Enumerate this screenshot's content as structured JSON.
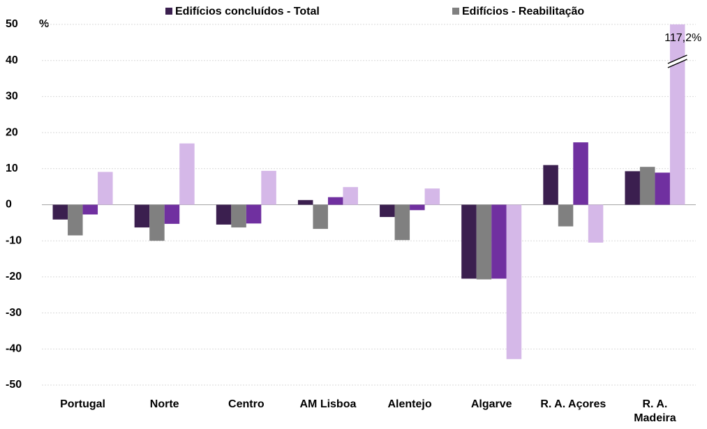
{
  "chart_data": {
    "type": "bar",
    "y_label": "%",
    "categories": [
      "Portugal",
      "Norte",
      "Centro",
      "AM Lisboa",
      "Alentejo",
      "Algarve",
      "R. A. Açores",
      "R. A.\nMadeira"
    ],
    "series": [
      {
        "name": "Edifícios concluídos - Total",
        "color": "#3b1f4f",
        "values": [
          -4.1,
          -6.3,
          -5.5,
          1.3,
          -3.4,
          -20.5,
          11,
          9.3
        ]
      },
      {
        "name": "Edifícios - Reabilitação",
        "color": "#808080",
        "values": [
          -8.5,
          -10,
          -6.3,
          -6.7,
          -9.8,
          -20.7,
          -6,
          10.5
        ]
      },
      {
        "color": "#7030a0",
        "values": [
          -2.7,
          -5.3,
          -5.2,
          2.1,
          -1.5,
          -20.5,
          17.3,
          8.9
        ]
      },
      {
        "color": "#d5b8e8",
        "values": [
          9.1,
          17,
          9.4,
          4.9,
          4.5,
          -42.8,
          -10.5,
          117.2
        ],
        "value_labels": [
          null,
          null,
          null,
          null,
          null,
          null,
          null,
          "117,2%"
        ]
      }
    ],
    "ylim": [
      -50,
      50
    ],
    "yticks": [
      -50,
      -40,
      -30,
      -20,
      -10,
      0,
      10,
      20,
      30,
      40,
      50
    ],
    "grid": true
  }
}
